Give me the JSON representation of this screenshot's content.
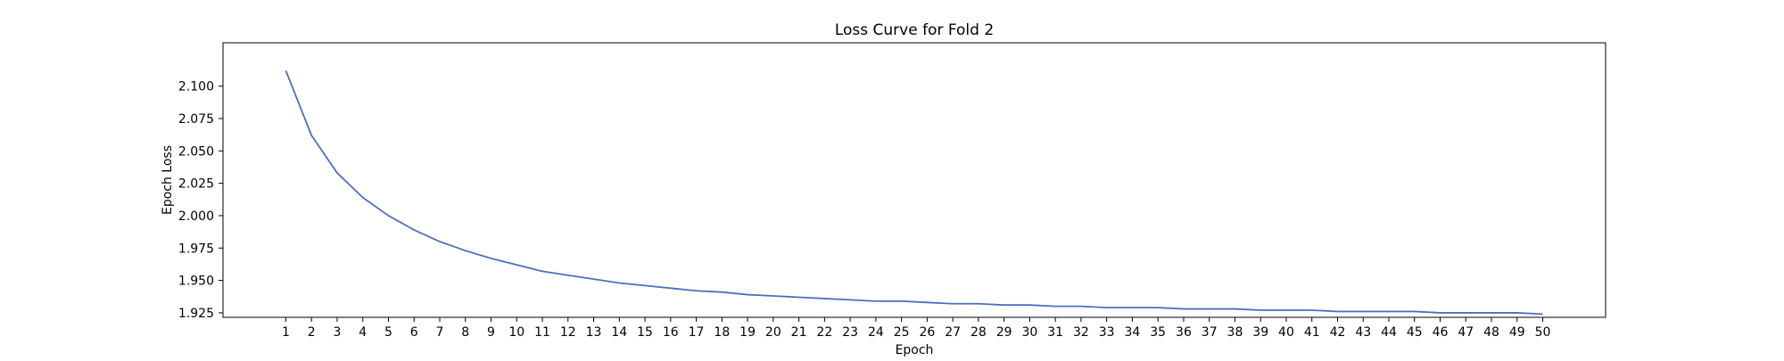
{
  "chart_data": {
    "type": "line",
    "title": "Loss Curve for Fold 2",
    "xlabel": "Epoch",
    "ylabel": "Epoch Loss",
    "x": [
      1,
      2,
      3,
      4,
      5,
      6,
      7,
      8,
      9,
      10,
      11,
      12,
      13,
      14,
      15,
      16,
      17,
      18,
      19,
      20,
      21,
      22,
      23,
      24,
      25,
      26,
      27,
      28,
      29,
      30,
      31,
      32,
      33,
      34,
      35,
      36,
      37,
      38,
      39,
      40,
      41,
      42,
      43,
      44,
      45,
      46,
      47,
      48,
      49,
      50
    ],
    "xticks": [
      "1",
      "2",
      "3",
      "4",
      "5",
      "6",
      "7",
      "8",
      "9",
      "10",
      "11",
      "12",
      "13",
      "14",
      "15",
      "16",
      "17",
      "18",
      "19",
      "20",
      "21",
      "22",
      "23",
      "24",
      "25",
      "26",
      "27",
      "28",
      "29",
      "30",
      "31",
      "32",
      "33",
      "34",
      "35",
      "36",
      "37",
      "38",
      "39",
      "40",
      "41",
      "42",
      "43",
      "44",
      "45",
      "46",
      "47",
      "48",
      "49",
      "50"
    ],
    "yticks": [
      "1.925",
      "1.950",
      "1.975",
      "2.000",
      "2.025",
      "2.050",
      "2.075",
      "2.100"
    ],
    "ytick_values": [
      1.925,
      1.95,
      1.975,
      2.0,
      2.025,
      2.05,
      2.075,
      2.1
    ],
    "xlim": [
      -1.45,
      52.45
    ],
    "ylim": [
      1.9215,
      2.1335
    ],
    "series": [
      {
        "color": "#4c6fbf",
        "values": [
          2.112,
          2.062,
          2.033,
          2.014,
          2.0,
          1.989,
          1.98,
          1.973,
          1.967,
          1.962,
          1.957,
          1.954,
          1.951,
          1.948,
          1.946,
          1.944,
          1.942,
          1.941,
          1.939,
          1.938,
          1.937,
          1.936,
          1.935,
          1.934,
          1.934,
          1.933,
          1.932,
          1.932,
          1.931,
          1.931,
          1.93,
          1.93,
          1.929,
          1.929,
          1.929,
          1.928,
          1.928,
          1.928,
          1.927,
          1.927,
          1.927,
          1.926,
          1.926,
          1.926,
          1.926,
          1.925,
          1.925,
          1.925,
          1.925,
          1.924
        ]
      }
    ],
    "grid": false,
    "legend": "none"
  }
}
